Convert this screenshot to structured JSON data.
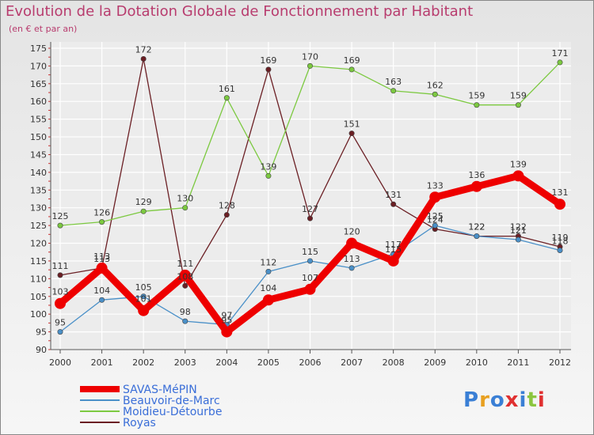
{
  "chart_data": {
    "type": "line",
    "title": "Evolution de la Dotation Globale de Fonctionnement par Habitant",
    "subtitle": "(en € et par an)",
    "x": [
      "2000",
      "2001",
      "2002",
      "2003",
      "2004",
      "2005",
      "2006",
      "2007",
      "2008",
      "2009",
      "2010",
      "2011",
      "2012"
    ],
    "ylim": [
      90,
      175
    ],
    "yticks": [
      90,
      95,
      100,
      105,
      110,
      115,
      120,
      125,
      130,
      135,
      140,
      145,
      150,
      155,
      160,
      165,
      170,
      175
    ],
    "grid": true,
    "series": [
      {
        "name": "SAVAS-MéPIN",
        "color": "#ee0000",
        "values": [
          103,
          113,
          101,
          111,
          95,
          104,
          107,
          120,
          115,
          133,
          136,
          139,
          131
        ],
        "labels": [
          "103",
          "113",
          "101",
          "111",
          "95",
          "104",
          "107",
          "120",
          "115",
          "133",
          "136",
          "139",
          "131"
        ]
      },
      {
        "name": "Beauvoir-de-Marc",
        "color": "#4a90c8",
        "values": [
          95,
          104,
          105,
          98,
          97,
          112,
          115,
          113,
          117,
          125,
          122,
          121,
          118
        ],
        "labels": [
          "95",
          "104",
          "105",
          "98",
          "97",
          "112",
          "115",
          "113",
          "117",
          "125",
          "122",
          "121",
          "118"
        ]
      },
      {
        "name": "Moidieu-Détourbe",
        "color": "#7cc940",
        "values": [
          125,
          126,
          129,
          130,
          161,
          139,
          170,
          169,
          163,
          162,
          159,
          159,
          171
        ],
        "labels": [
          "125",
          "126",
          "129",
          "130",
          "161",
          "139",
          "170",
          "169",
          "163",
          "162",
          "159",
          "159",
          "171"
        ]
      },
      {
        "name": "Royas",
        "color": "#6b1f24",
        "values": [
          111,
          113,
          172,
          108,
          128,
          169,
          127,
          151,
          131,
          124,
          122,
          122,
          119
        ],
        "labels": [
          "111",
          "113",
          "172",
          "108",
          "128",
          "169",
          "127",
          "151",
          "131",
          "124",
          "122",
          "122",
          "119"
        ]
      }
    ]
  },
  "logo": {
    "text": "Proxiti",
    "letter_colors": [
      "#3a7fd5",
      "#e8a020",
      "#3a7fd5",
      "#e03030",
      "#3a7fd5",
      "#8cc63f",
      "#e03030"
    ]
  }
}
